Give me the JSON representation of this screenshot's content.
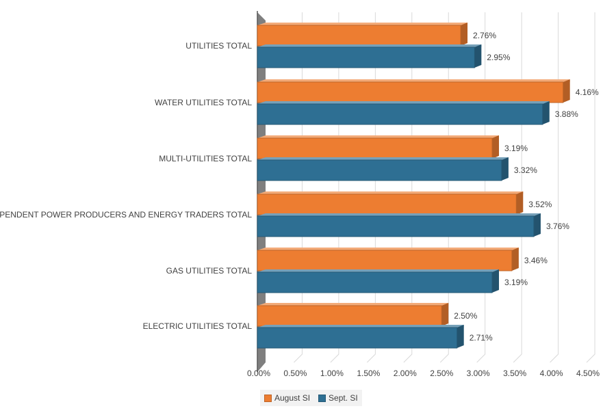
{
  "chart_data": {
    "type": "bar",
    "orientation": "horizontal",
    "categories": [
      "UTILITIES TOTAL",
      "WATER UTILITIES TOTAL",
      "MULTI-UTILITIES TOTAL",
      "INDEPENDENT POWER PRODUCERS AND ENERGY TRADERS TOTAL",
      "GAS UTILITIES TOTAL",
      "ELECTRIC UTILITIES TOTAL"
    ],
    "series": [
      {
        "name": "August SI",
        "color": "#ed7d31",
        "values": [
          2.76,
          4.16,
          3.19,
          3.52,
          3.46,
          2.5
        ],
        "labels": [
          "2.76%",
          "4.16%",
          "3.19%",
          "3.52%",
          "3.46%",
          "2.50%"
        ]
      },
      {
        "name": "Sept. SI",
        "color": "#2e6f93",
        "values": [
          2.95,
          3.88,
          3.32,
          3.76,
          3.19,
          2.71
        ],
        "labels": [
          "2.95%",
          "3.88%",
          "3.32%",
          "3.76%",
          "3.19%",
          "2.71%"
        ]
      }
    ],
    "xlim": [
      0,
      4.5
    ],
    "ticks": [
      "0.00%",
      "0.50%",
      "1.00%",
      "1.50%",
      "2.00%",
      "2.50%",
      "3.00%",
      "3.50%",
      "4.00%",
      "4.50%"
    ],
    "title": "",
    "xlabel": "",
    "ylabel": "",
    "grid": true,
    "legend_position": "bottom"
  }
}
